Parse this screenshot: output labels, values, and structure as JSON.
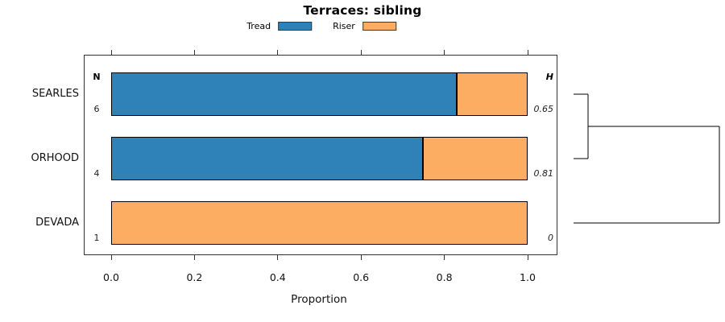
{
  "chart_data": {
    "type": "bar",
    "orientation": "horizontal",
    "stacked": true,
    "title": "Terraces: sibling",
    "xlabel": "Proportion",
    "xlim": [
      0,
      1
    ],
    "grid": false,
    "categories": [
      "SEARLES",
      "ORHOOD",
      "DEVADA"
    ],
    "series": [
      {
        "name": "Tread",
        "color": "#2E82B8",
        "values": [
          0.833,
          0.75,
          0
        ]
      },
      {
        "name": "Riser",
        "color": "#FDAD61",
        "values": [
          0.167,
          0.25,
          1
        ]
      }
    ],
    "xticks": [
      {
        "value": 0.0,
        "label": "0.0"
      },
      {
        "value": 0.2,
        "label": "0.2"
      },
      {
        "value": 0.4,
        "label": "0.4"
      },
      {
        "value": 0.6,
        "label": "0.6"
      },
      {
        "value": 0.8,
        "label": "0.8"
      },
      {
        "value": 1.0,
        "label": "1.0"
      }
    ],
    "legend": {
      "position": "top",
      "entries": [
        {
          "label": "Tread",
          "color": "#2E82B8"
        },
        {
          "label": "Riser",
          "color": "#FDAD61"
        }
      ]
    },
    "annotations": {
      "n_column": {
        "header": "N",
        "values": [
          "6",
          "4",
          "1"
        ]
      },
      "h_column": {
        "header": "H",
        "values": [
          "0.65",
          "0.81",
          "0"
        ]
      }
    },
    "dendrogram": {
      "present": true,
      "side": "right",
      "merges": [
        {
          "children": [
            "leaf0",
            "leaf1"
          ],
          "height": 0.1
        },
        {
          "children": [
            "merge0",
            "leaf2"
          ],
          "height": 1.0
        }
      ]
    }
  }
}
